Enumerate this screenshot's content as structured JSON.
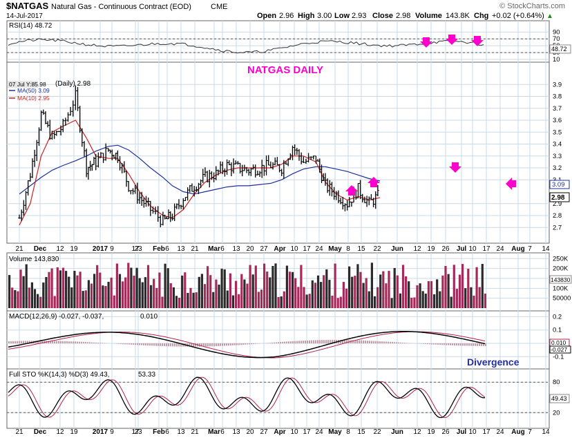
{
  "header": {
    "ticker": "$NATGAS",
    "name": "Natural Gas - Continuous Contract (EOD)",
    "exchange": "CME",
    "date": "14-Jul-2017",
    "open_label": "Open",
    "open": "2.96",
    "high_label": "High",
    "high": "3.00",
    "low_label": "Low",
    "low": "2.93",
    "close_label": "Close",
    "close": "2.98",
    "volume_label": "Volume",
    "volume": "143.8K",
    "chg_label": "Chg",
    "chg": "+0.02 (+0.64%)",
    "chg_arrow": "▲",
    "watermark": "© StockCharts.com"
  },
  "colors": {
    "up_bar": "#000000",
    "ma50": "#1c2f9c",
    "ma10": "#cc1f1f",
    "annotation": "#ff00cc",
    "volume_up": "#2a2a2a",
    "volume_down": "#a52a5a",
    "macd_line": "#000000",
    "signal_line": "#b2224a",
    "histogram": "#c89aa6",
    "grid": "#c9dbe8"
  },
  "rsi_panel": {
    "label": "RSI(14) 48.72",
    "current": "48.72",
    "ticks": [
      "90",
      "70",
      "50",
      "30",
      "10"
    ],
    "tick_values": [
      90,
      70,
      50,
      30,
      10
    ]
  },
  "price_panel": {
    "annotation": "NATGAS DAILY",
    "legend_date": "07 Jul Y:85.98",
    "legend_daily": "(Daily) 2.98",
    "legend_ma50": "MA(50) 3.09",
    "legend_ma10": "MA(10) 2.95",
    "tag_ma50": "3.09",
    "tag_close": "2.98",
    "ticks": [
      "3.9",
      "3.8",
      "3.7",
      "3.6",
      "3.5",
      "3.4",
      "3.3",
      "3.2",
      "3.1",
      "2.9",
      "2.8",
      "2.7"
    ],
    "tick_values": [
      3.9,
      3.8,
      3.7,
      3.6,
      3.5,
      3.4,
      3.3,
      3.2,
      3.1,
      2.9,
      2.8,
      2.7
    ]
  },
  "volume_panel": {
    "label": "Volume 143,830",
    "current": "143830",
    "ticks": [
      "250K",
      "200K",
      "150K",
      "100K",
      "50000"
    ],
    "tick_values": [
      250000,
      200000,
      150000,
      100000,
      50000
    ]
  },
  "macd_panel": {
    "label_main": "MACD(12,26,9) -0.027, -0.037,",
    "label_hist": "0.010",
    "annotation": "Divergence",
    "ticks": [
      "0.2",
      "0.1",
      "0.0",
      "-0.1"
    ],
    "tick_values": [
      0.2,
      0.1,
      0.0,
      -0.1
    ],
    "tag_hist": "0.010",
    "tag_macd": "-0.027"
  },
  "sto_panel": {
    "label_main": "Full STO %K(14,3) %D(3) 49.43,",
    "label_d": "53.33",
    "current": "49.43",
    "ticks": [
      "80",
      "20"
    ],
    "tick_values": [
      80,
      20
    ]
  },
  "x_axis": {
    "labels": [
      "21",
      "Dec",
      "12",
      "19",
      "2017",
      "9",
      "17",
      "23",
      "Feb",
      "6",
      "13",
      "21",
      "Mar",
      "6",
      "13",
      "20",
      "27",
      "Apr",
      "10",
      "17",
      "24",
      "May",
      "8",
      "15",
      "22",
      "Jun",
      "12",
      "19",
      "26",
      "Jul",
      "10",
      "17",
      "24",
      "Aug",
      "7",
      "14"
    ],
    "bold": [
      "Dec",
      "2017",
      "Feb",
      "Mar",
      "Apr",
      "May",
      "Jun",
      "Jul",
      "Aug"
    ]
  },
  "chart_data": {
    "type": "line",
    "title": "$NATGAS",
    "xlabel": "",
    "ylabel": "",
    "ylim": [
      2.65,
      3.95
    ],
    "x": [
      "2016-11-21",
      "2016-11-28",
      "2016-12-05",
      "2016-12-12",
      "2016-12-19",
      "2016-12-27",
      "2017-01-03",
      "2017-01-09",
      "2017-01-17",
      "2017-01-23",
      "2017-01-30",
      "2017-02-06",
      "2017-02-13",
      "2017-02-21",
      "2017-02-27",
      "2017-03-06",
      "2017-03-13",
      "2017-03-20",
      "2017-03-27",
      "2017-04-03",
      "2017-04-10",
      "2017-04-17",
      "2017-04-24",
      "2017-05-01",
      "2017-05-08",
      "2017-05-15",
      "2017-05-22",
      "2017-05-30",
      "2017-06-05",
      "2017-06-12",
      "2017-06-19",
      "2017-06-26",
      "2017-07-03",
      "2017-07-10"
    ],
    "series": [
      {
        "name": "(Daily)",
        "values": [
          2.78,
          3.15,
          3.65,
          3.45,
          3.55,
          3.8,
          3.2,
          3.25,
          3.35,
          3.3,
          3.05,
          2.95,
          2.85,
          2.75,
          2.8,
          2.95,
          3.05,
          3.12,
          3.15,
          3.22,
          3.2,
          3.18,
          3.2,
          3.22,
          3.2,
          3.38,
          3.25,
          3.28,
          3.05,
          2.98,
          2.9,
          3.02,
          2.9,
          2.98
        ]
      },
      {
        "name": "MA(50)",
        "values": [
          2.98,
          3.05,
          3.12,
          3.18,
          3.22,
          3.26,
          3.3,
          3.34,
          3.38,
          3.39,
          3.35,
          3.28,
          3.2,
          3.12,
          3.05,
          3.0,
          2.98,
          3.0,
          3.02,
          3.04,
          3.05,
          3.05,
          3.06,
          3.07,
          3.1,
          3.15,
          3.19,
          3.21,
          3.21,
          3.19,
          3.17,
          3.14,
          3.11,
          3.09
        ]
      },
      {
        "name": "MA(10)",
        "values": [
          2.72,
          2.9,
          3.3,
          3.5,
          3.55,
          3.6,
          3.45,
          3.3,
          3.28,
          3.28,
          3.15,
          3.0,
          2.88,
          2.8,
          2.78,
          2.85,
          2.98,
          3.08,
          3.14,
          3.18,
          3.2,
          3.2,
          3.2,
          3.2,
          3.23,
          3.3,
          3.3,
          3.25,
          3.08,
          2.98,
          2.93,
          2.96,
          2.93,
          2.95
        ]
      }
    ]
  }
}
